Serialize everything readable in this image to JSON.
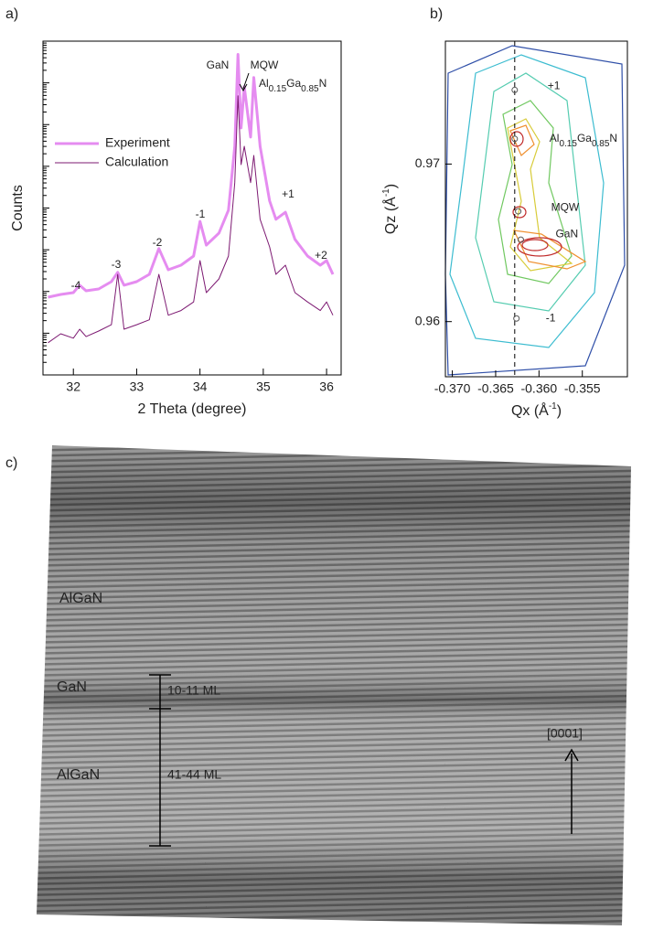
{
  "chart_data": [
    {
      "type": "line",
      "x_label": "2 Theta (degree)",
      "y_label": "Counts",
      "log_y": true,
      "legend": "upper-left",
      "x": [
        31.6,
        31.8,
        32.0,
        32.1,
        32.2,
        32.4,
        32.6,
        32.7,
        32.8,
        33.0,
        33.2,
        33.35,
        33.5,
        33.7,
        33.9,
        34.0,
        34.1,
        34.3,
        34.45,
        34.55,
        34.6,
        34.65,
        34.7,
        34.8,
        34.85,
        34.95,
        35.1,
        35.2,
        35.35,
        35.5,
        35.7,
        35.9,
        36.0,
        36.1
      ],
      "series": [
        {
          "name": "Experiment",
          "color": "#e58cf0",
          "values": [
            73,
            85,
            94,
            141,
            104,
            115,
            172,
            288,
            141,
            172,
            257,
            1070,
            331,
            427,
            708,
            4790,
            1290,
            2510,
            8910,
            302000,
            48000000,
            832000,
            8100000,
            501000,
            13500000,
            302000,
            14800,
            5370,
            7940,
            1780,
            708,
            427,
            550,
            257
          ]
        },
        {
          "name": "Calculation",
          "color": "#7d1a72",
          "values": [
            5.9,
            9.7,
            7.6,
            12.5,
            8.3,
            11.3,
            16,
            257,
            12.5,
            16,
            21,
            257,
            27,
            35,
            56,
            550,
            94,
            200,
            708,
            40700,
            4900000,
            110000,
            302000,
            40700,
            182000,
            5370,
            1170,
            257,
            427,
            94,
            56,
            35,
            56,
            27
          ]
        }
      ],
      "xlim": [
        31.52,
        36.23
      ],
      "xticks": [
        32,
        33,
        34,
        35,
        36
      ],
      "ylim": [
        1,
        100000000
      ],
      "peak_labels": [
        "-4",
        "-3",
        "-2",
        "-1",
        "+1",
        "+2",
        "GaN",
        "MQW"
      ],
      "alloy_label": [
        "Al",
        "0.15",
        "Ga",
        "0.85",
        "N"
      ]
    },
    {
      "type": "contour",
      "x_label": [
        "Qx (Å",
        "-1",
        ")"
      ],
      "y_label": [
        "Qz (Å",
        "-1",
        ")"
      ],
      "xlim": [
        -0.3708,
        -0.3498
      ],
      "xticks": [
        {
          "value": -0.37,
          "label": "-0.370"
        },
        -0.365,
        {
          "value": -0.36,
          "label": "-0.360"
        },
        -0.355
      ],
      "ylim": [
        0.9565,
        0.9778
      ],
      "yticks": [
        0.96,
        0.97
      ],
      "reference_x": -0.3628,
      "points": [
        {
          "x": -0.3628,
          "y": 0.9747,
          "label": "+1"
        },
        {
          "x": -0.3628,
          "y": 0.9716,
          "label": [
            "Al",
            "0.15",
            "Ga",
            "0.85",
            "N"
          ]
        },
        {
          "x": -0.3624,
          "y": 0.967,
          "label": "MQW"
        },
        {
          "x": -0.3621,
          "y": 0.9652,
          "label": "GaN"
        },
        {
          "x": -0.3626,
          "y": 0.9602,
          "label": "-1"
        }
      ]
    }
  ],
  "figure": {
    "panel_labels": [
      "a)",
      "b)",
      "c)"
    ],
    "image_labels": [
      "AlGaN",
      "GaN",
      "AlGaN",
      "10-11 ML",
      "41-44 ML",
      "[0001]"
    ]
  }
}
